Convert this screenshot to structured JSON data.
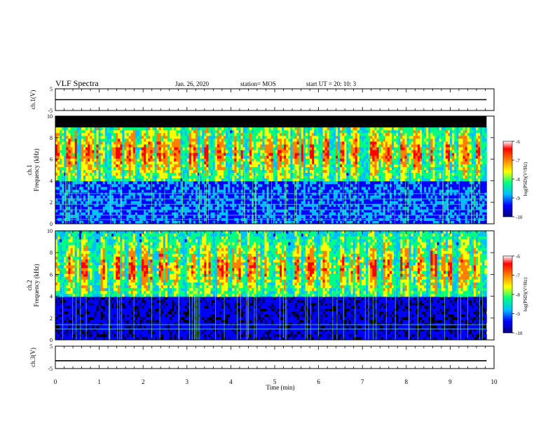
{
  "header": {
    "title": "VLF Spectra",
    "date": "Jan. 26, 2020",
    "station": "station= MOS",
    "start": "start UT =   20: 10: 3"
  },
  "chart_data": [
    {
      "type": "line",
      "panel": "ch1-waveform",
      "ylabel": "ch.1(V)",
      "ylim": [
        -5,
        5
      ],
      "yticks": [
        "5",
        "-5"
      ],
      "x": [
        0,
        9.83
      ],
      "values": [
        0,
        0
      ],
      "line_color": "#000000"
    },
    {
      "type": "heatmap",
      "panel": "ch1-spectrogram",
      "ylabel": "ch.1\nFrequency (kHz)",
      "ylim": [
        0,
        10
      ],
      "yticks": [
        "0",
        "2",
        "4",
        "6",
        "8",
        "10"
      ],
      "xlim": [
        0,
        9.83
      ],
      "colorbar": {
        "label": "log(PSD)(V²/Hz)",
        "range": [
          -10,
          -6
        ],
        "ticks": [
          "-6",
          "-7",
          "-8",
          "-9",
          "-10"
        ],
        "colormap": [
          "#000080",
          "#0000ff",
          "#00c0ff",
          "#00ff80",
          "#ffff00",
          "#ff8000",
          "#ff0000",
          "#ffffff"
        ]
      },
      "dominant_band_khz": [
        4,
        9
      ],
      "peak_band_khz": [
        5.5,
        7.5
      ],
      "upper_cutoff_khz": 9
    },
    {
      "type": "heatmap",
      "panel": "ch2-spectrogram",
      "ylabel": "ch.2\nFrequency (kHz)",
      "ylim": [
        0,
        10
      ],
      "yticks": [
        "0",
        "2",
        "4",
        "6",
        "8",
        "10"
      ],
      "xlim": [
        0,
        9.83
      ],
      "colorbar": {
        "label": "log(PSD)(V²/Hz)",
        "range": [
          -10,
          -6
        ],
        "ticks": [
          "-6",
          "-7",
          "-8",
          "-9",
          "-10"
        ],
        "colormap": [
          "#000080",
          "#0000ff",
          "#00c0ff",
          "#00ff80",
          "#ffff00",
          "#ff8000",
          "#ff0000",
          "#ffffff"
        ]
      },
      "dominant_band_khz": [
        4,
        10
      ],
      "peak_band_khz": [
        5.5,
        7.5
      ]
    },
    {
      "type": "line",
      "panel": "ch3-waveform",
      "ylabel": "ch.3(V)",
      "ylim": [
        -5,
        5
      ],
      "yticks": [
        "5",
        "-5"
      ],
      "x": [
        0,
        9.83
      ],
      "values": [
        -1.5,
        -1.5
      ],
      "line_color": "#000000"
    }
  ],
  "x_axis": {
    "label": "Time (min)",
    "range": [
      0,
      10
    ],
    "ticks": [
      "0",
      "1",
      "2",
      "3",
      "4",
      "5",
      "6",
      "7",
      "8",
      "9",
      "10"
    ]
  }
}
